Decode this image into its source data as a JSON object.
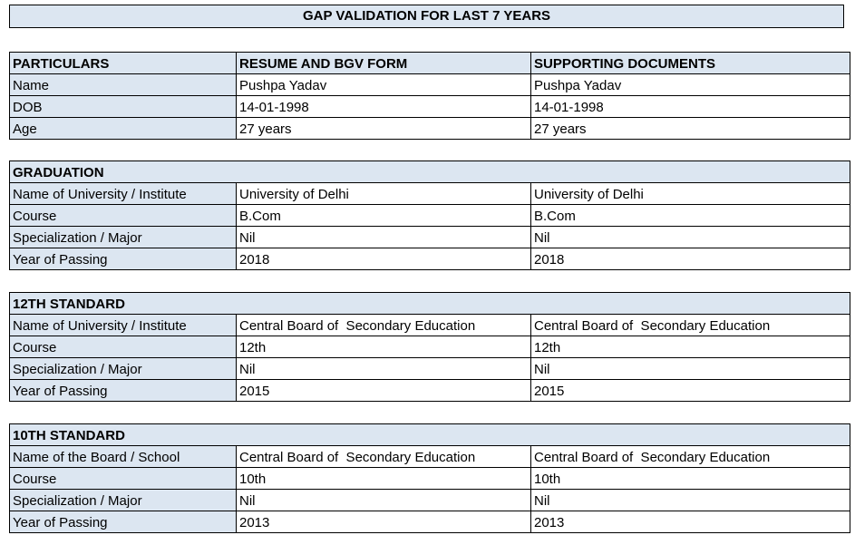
{
  "title": "GAP VALIDATION FOR LAST 7 YEARS",
  "colors": {
    "header_fill": "#DCE6F1",
    "border": "#000000",
    "text": "#000000",
    "background": "#FFFFFF"
  },
  "particulars_table": {
    "headers": [
      "PARTICULARS",
      "RESUME AND BGV FORM",
      "SUPPORTING DOCUMENTS"
    ],
    "rows": [
      {
        "label": "Name",
        "resume": "Pushpa Yadav",
        "supporting": "Pushpa Yadav"
      },
      {
        "label": "DOB",
        "resume": "14-01-1998",
        "supporting": "14-01-1998"
      },
      {
        "label": "Age",
        "resume": "27 years",
        "supporting": "27 years"
      }
    ]
  },
  "sections": [
    {
      "heading": "GRADUATION",
      "rows": [
        {
          "label": "Name of University / Institute",
          "resume": "University of Delhi",
          "supporting": "University of Delhi"
        },
        {
          "label": "Course",
          "resume": "B.Com",
          "supporting": "B.Com"
        },
        {
          "label": "Specialization / Major",
          "resume": "Nil",
          "supporting": "Nil"
        },
        {
          "label": "Year of Passing",
          "resume": "2018",
          "supporting": "2018"
        }
      ]
    },
    {
      "heading": "12TH STANDARD",
      "rows": [
        {
          "label": "Name of University / Institute",
          "resume": "Central Board of  Secondary Education",
          "supporting": "Central Board of  Secondary Education"
        },
        {
          "label": "Course",
          "resume": "12th",
          "supporting": "12th"
        },
        {
          "label": "Specialization / Major",
          "resume": "Nil",
          "supporting": "Nil"
        },
        {
          "label": "Year of Passing",
          "resume": "2015",
          "supporting": "2015"
        }
      ]
    },
    {
      "heading": "10TH STANDARD",
      "rows": [
        {
          "label": "Name of the Board / School",
          "resume": "Central Board of  Secondary Education",
          "supporting": "Central Board of  Secondary Education"
        },
        {
          "label": "Course",
          "resume": "10th",
          "supporting": "10th"
        },
        {
          "label": "Specialization / Major",
          "resume": "Nil",
          "supporting": "Nil"
        },
        {
          "label": "Year of Passing",
          "resume": "2013",
          "supporting": "2013"
        }
      ]
    }
  ]
}
